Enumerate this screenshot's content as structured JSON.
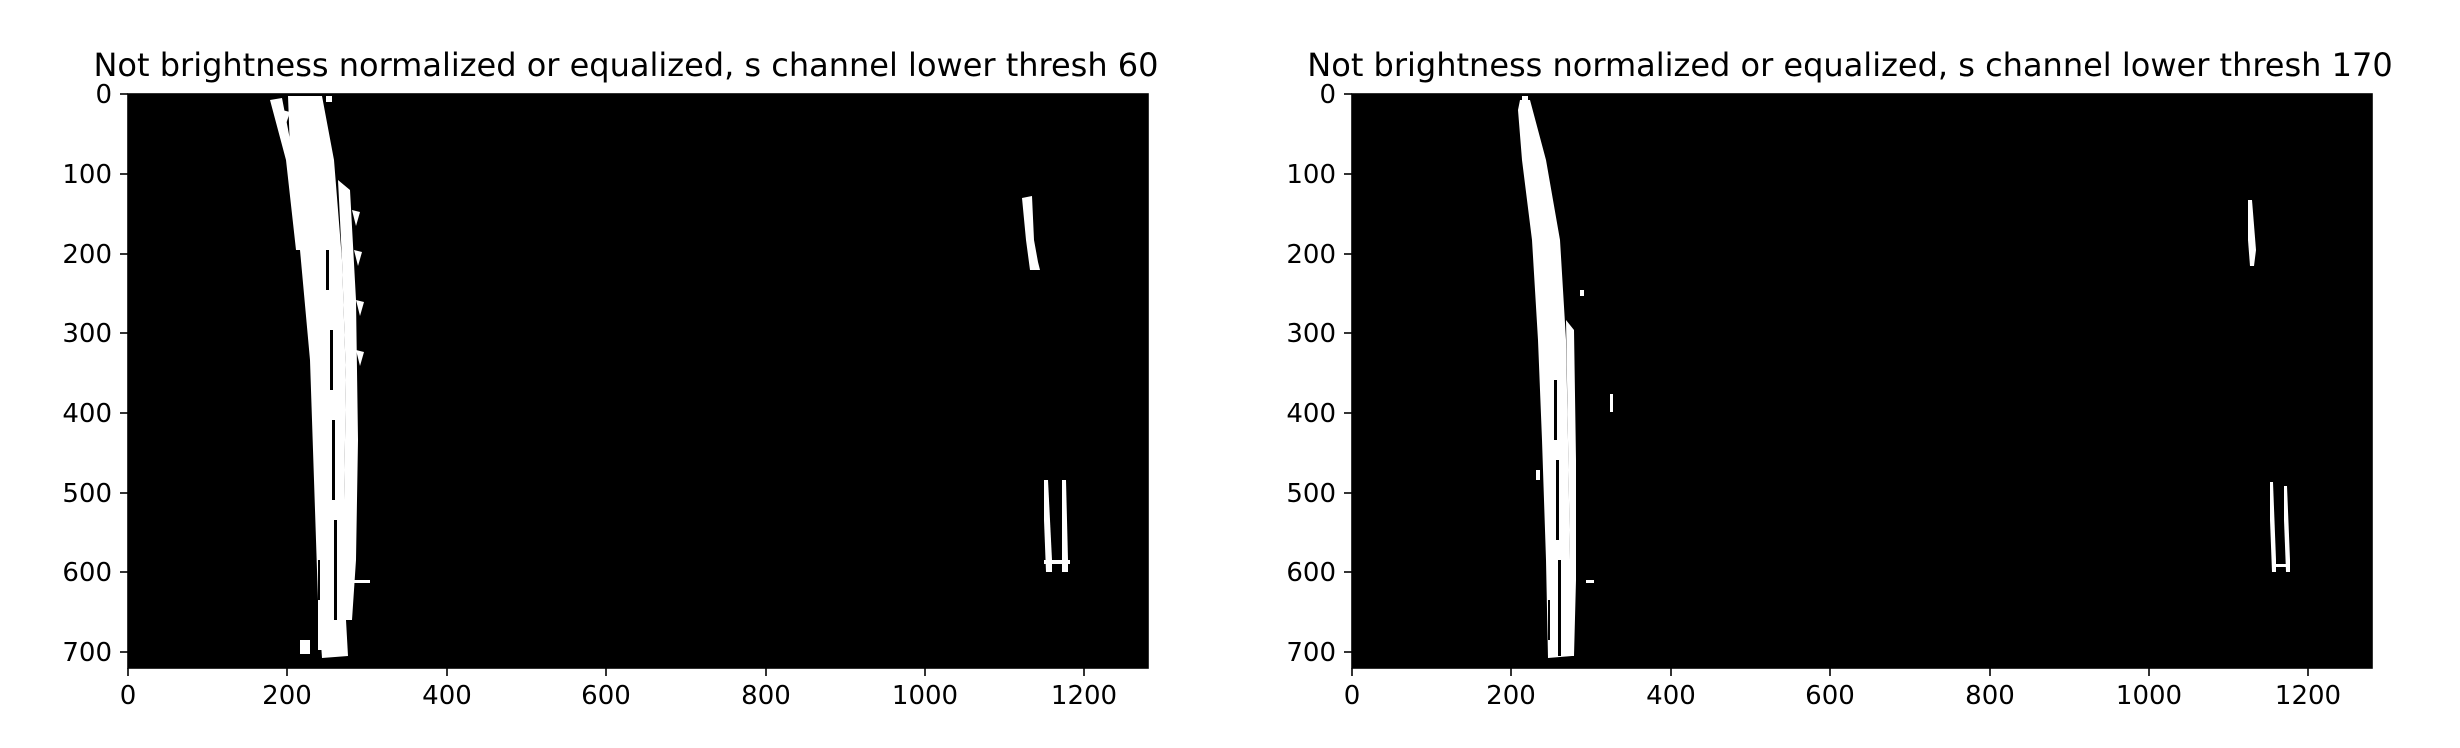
{
  "panels": [
    {
      "title": "Not brightness normalized or equalized, s channel lower thresh 60",
      "xticks": [
        "0",
        "200",
        "400",
        "600",
        "800",
        "1000",
        "1200"
      ],
      "yticks": [
        "0",
        "100",
        "200",
        "300",
        "400",
        "500",
        "600",
        "700"
      ],
      "xlim": [
        0,
        1280
      ],
      "ylim": [
        0,
        720
      ]
    },
    {
      "title": "Not brightness normalized or equalized, s channel lower thresh 170",
      "xticks": [
        "0",
        "200",
        "400",
        "600",
        "800",
        "1000",
        "1200"
      ],
      "yticks": [
        "0",
        "100",
        "200",
        "300",
        "400",
        "500",
        "600",
        "700"
      ],
      "xlim": [
        0,
        1280
      ],
      "ylim": [
        0,
        720
      ]
    }
  ],
  "colors": {
    "background": "#000000",
    "lane": "#ffffff",
    "figure": "#ffffff"
  }
}
